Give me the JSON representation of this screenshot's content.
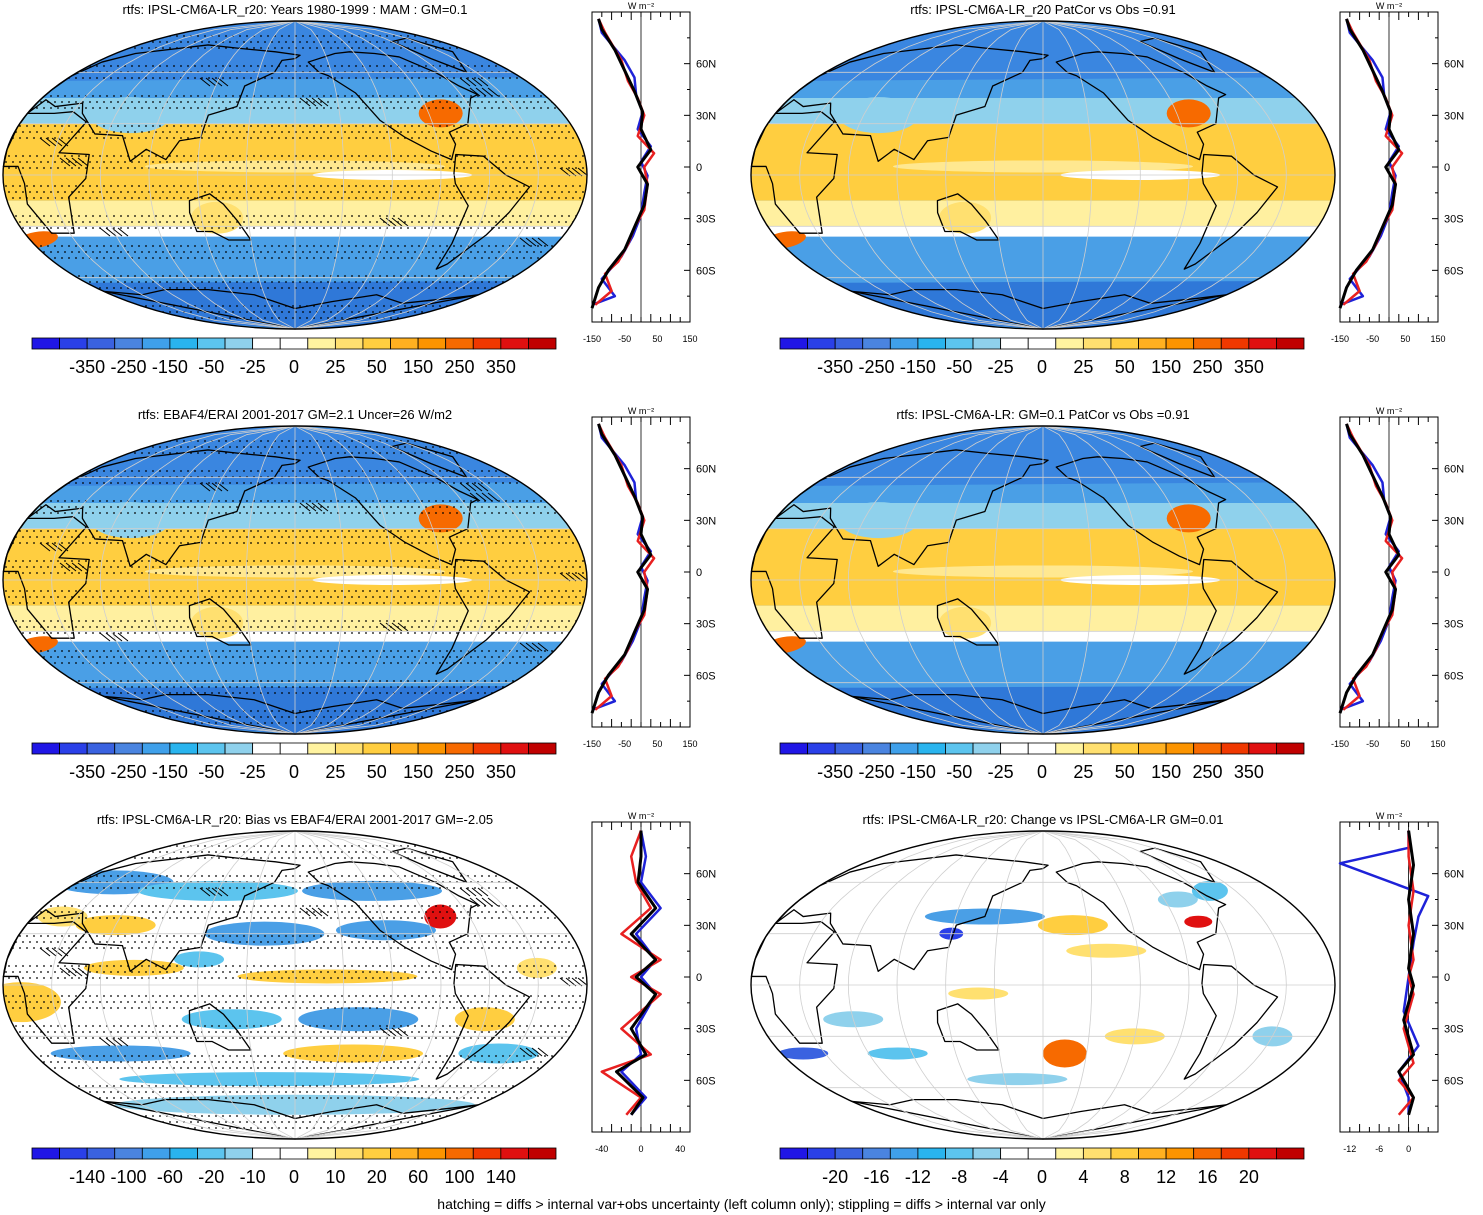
{
  "footer": "hatching = diffs > internal var+obs uncertainty (left column only); stippling = diffs > internal var only",
  "palette": [
    "#2016e6",
    "#2a40e8",
    "#3a62e0",
    "#4a84e0",
    "#3fa0ea",
    "#29b4ee",
    "#5cc4ee",
    "#8fd1ec",
    "#ffffff",
    "#ffffff",
    "#fff3a0",
    "#ffe070",
    "#ffce40",
    "#ffb020",
    "#fc9400",
    "#f76a00",
    "#f03800",
    "#e01010",
    "#c00000"
  ],
  "units": "W m⁻²",
  "lat_labels": [
    "60N",
    "30N",
    "0",
    "30S",
    "60S"
  ],
  "line_colors": {
    "red": "#e82020",
    "blue": "#1e22d8",
    "black": "#000000"
  },
  "panels": [
    {
      "id": "p1",
      "title": "rtfs: IPSL-CM6A-LR_r20: Years 1980-1999 : MAM : GM=0.1",
      "map_style": "mean",
      "stipple": true,
      "hatch": true,
      "colorbar_labels": [
        "-350",
        "-250",
        "-150",
        "-50",
        "-25",
        "0",
        "25",
        "50",
        "150",
        "250",
        "350"
      ],
      "profile_ticks": [
        "-150",
        "-50",
        "50",
        "150"
      ]
    },
    {
      "id": "p2",
      "title": "rtfs: IPSL-CM6A-LR_r20 PatCor vs Obs =0.91",
      "map_style": "mean",
      "stipple": false,
      "hatch": false,
      "colorbar_labels": [
        "-350",
        "-250",
        "-150",
        "-50",
        "-25",
        "0",
        "25",
        "50",
        "150",
        "250",
        "350"
      ],
      "profile_ticks": [
        "-150",
        "-50",
        "50",
        "150"
      ]
    },
    {
      "id": "p3",
      "title": "rtfs: EBAF4/ERAI 2001-2017 GM=2.1 Uncer=26 W/m2",
      "map_style": "mean",
      "stipple": true,
      "hatch": true,
      "colorbar_labels": [
        "-350",
        "-250",
        "-150",
        "-50",
        "-25",
        "0",
        "25",
        "50",
        "150",
        "250",
        "350"
      ],
      "profile_ticks": [
        "-150",
        "-50",
        "50",
        "150"
      ]
    },
    {
      "id": "p4",
      "title": "rtfs: IPSL-CM6A-LR: GM=0.1 PatCor vs Obs =0.91",
      "map_style": "mean",
      "stipple": false,
      "hatch": false,
      "colorbar_labels": [
        "-350",
        "-250",
        "-150",
        "-50",
        "-25",
        "0",
        "25",
        "50",
        "150",
        "250",
        "350"
      ],
      "profile_ticks": [
        "-150",
        "-50",
        "50",
        "150"
      ]
    },
    {
      "id": "p5",
      "title": "rtfs: IPSL-CM6A-LR_r20: Bias vs EBAF4/ERAI 2001-2017 GM=-2.05",
      "map_style": "bias",
      "stipple": true,
      "hatch": true,
      "colorbar_labels": [
        "-140",
        "-100",
        "-60",
        "-20",
        "-10",
        "0",
        "10",
        "20",
        "60",
        "100",
        "140"
      ],
      "profile_ticks": [
        "-40",
        "0",
        "40"
      ]
    },
    {
      "id": "p6",
      "title": "rtfs: IPSL-CM6A-LR_r20: Change vs IPSL-CM6A-LR GM=0.01",
      "map_style": "change",
      "stipple": false,
      "hatch": false,
      "colorbar_labels": [
        "-20",
        "-16",
        "-12",
        "-8",
        "-4",
        "0",
        "4",
        "8",
        "12",
        "16",
        "20"
      ],
      "profile_ticks": [
        "-12",
        "-6",
        "0"
      ]
    }
  ]
}
